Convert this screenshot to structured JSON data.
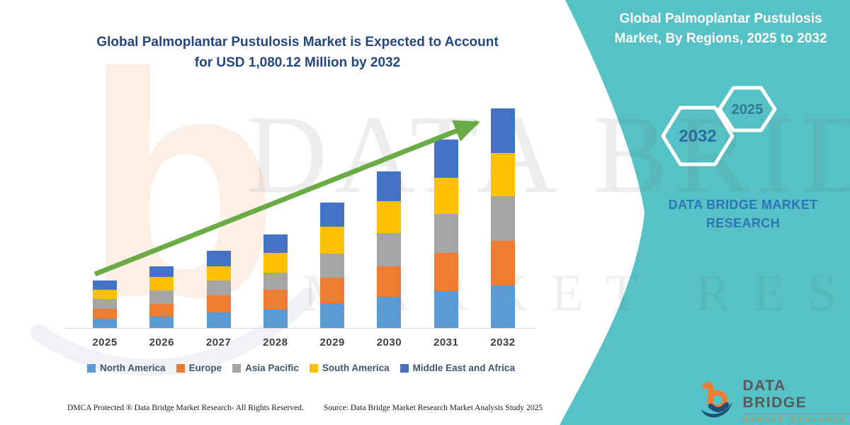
{
  "left": {
    "title_line1": "Global Palmoplantar Pustulosis Market is Expected to Account",
    "title_line2": "for USD 1,080.12 Million by 2032"
  },
  "chart_data": {
    "type": "bar",
    "stacked": true,
    "title": "Global Palmoplantar Pustulosis Market is Expected to Account for USD 1,080.12 Million by 2032",
    "unit": "USD Million",
    "categories": [
      "2025",
      "2026",
      "2027",
      "2028",
      "2029",
      "2030",
      "2031",
      "2032"
    ],
    "series": [
      {
        "name": "North America",
        "color": "#5B9BD5",
        "values": [
          47,
          57,
          77,
          90,
          122,
          154,
          180,
          209
        ]
      },
      {
        "name": "Europe",
        "color": "#ED7D31",
        "values": [
          46,
          63,
          83,
          97,
          125,
          151,
          191,
          221
        ]
      },
      {
        "name": "Asia Pacific",
        "color": "#A5A5A5",
        "values": [
          49,
          63,
          74,
          86,
          119,
          163,
          191,
          220
        ]
      },
      {
        "name": "South America",
        "color": "#FFC000",
        "values": [
          46,
          68,
          68,
          97,
          133,
          155,
          176,
          212
        ]
      },
      {
        "name": "Middle East and Africa",
        "color": "#4472C4",
        "values": [
          45,
          52,
          78,
          90,
          118,
          147,
          189,
          218.12
        ]
      }
    ],
    "totals": [
      233,
      303,
      380,
      460,
      617,
      770,
      927,
      1080.12
    ],
    "ylim": [
      0,
      1080.12
    ],
    "grid": false,
    "legend_position": "bottom",
    "trend_arrow": true
  },
  "right": {
    "title_line1": "Global Palmoplantar Pustulosis",
    "title_line2": "Market, By Regions, 2025 to 2032",
    "hexagon_large": "2032",
    "hexagon_small": "2025",
    "brand_line1": "DATA BRIDGE MARKET",
    "brand_line2": "RESEARCH"
  },
  "logo": {
    "title": "DATA BRIDGE",
    "subtitle": "MARKET RESEARCH"
  },
  "watermark": {
    "letter": "b",
    "text1": "DATA BRIDGE",
    "text2": "MARKET RESEARCH"
  },
  "footer": {
    "dmca": "DMCA Protected ® Data Bridge Market Research-  All Rights Reserved.",
    "source": "Source: Data Bridge Market Research  Market Analysis Study 2025"
  },
  "colors": {
    "teal_panel": "#57C2C5",
    "arrow_green": "#6AAB46",
    "title_blue": "#24477E",
    "brand_blue": "#2E75B6",
    "hexagon_large_text": "#2F6B9E",
    "hexagon_small_text": "#2F7B96",
    "axis_label": "#3F3F3F",
    "legend_text": "#44546A",
    "baseline_gray": "#D9D9D9"
  }
}
